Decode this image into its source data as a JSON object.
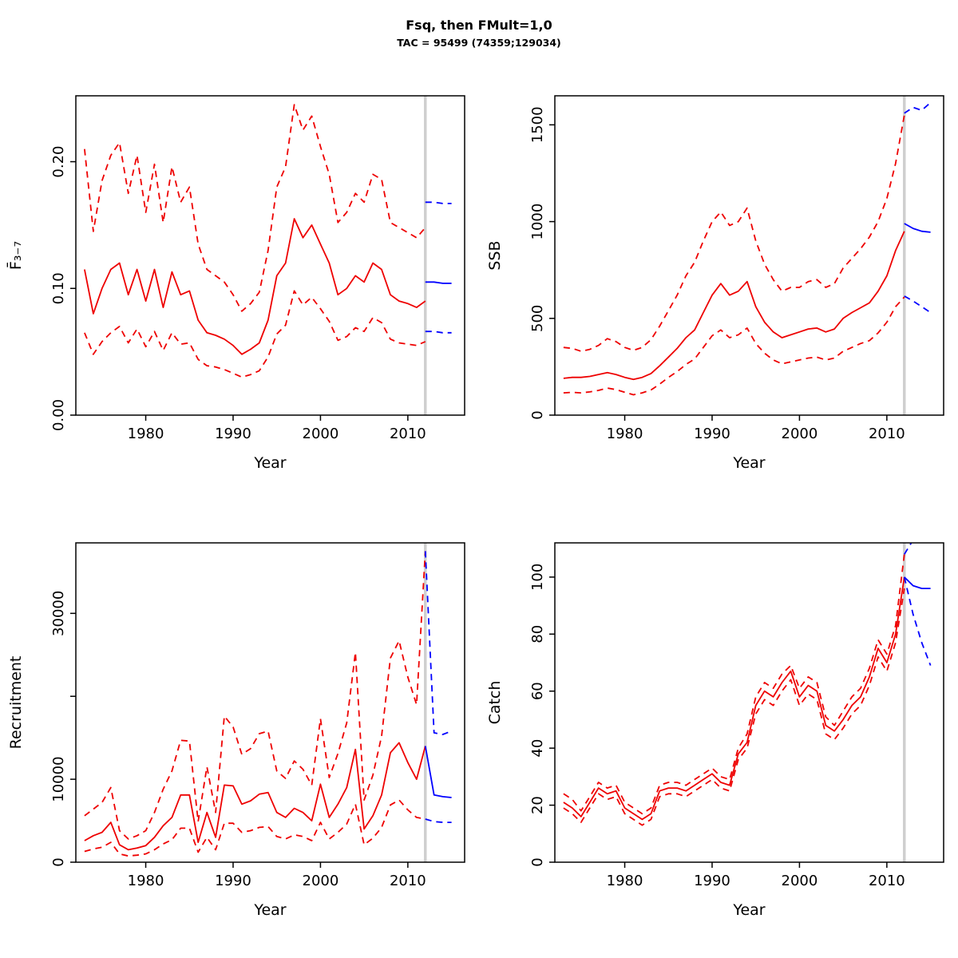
{
  "header": {
    "title": "Fsq, then FMult=1,0",
    "subtitle": "TAC = 95499 (74359;129034)"
  },
  "years": {
    "hist": [
      1973,
      1974,
      1975,
      1976,
      1977,
      1978,
      1979,
      1980,
      1981,
      1982,
      1983,
      1984,
      1985,
      1986,
      1987,
      1988,
      1989,
      1990,
      1991,
      1992,
      1993,
      1994,
      1995,
      1996,
      1997,
      1998,
      1999,
      2000,
      2001,
      2002,
      2003,
      2004,
      2005,
      2006,
      2007,
      2008,
      2009,
      2010,
      2011,
      2012
    ],
    "forecast": [
      2012,
      2013,
      2014,
      2015
    ]
  },
  "style": {
    "hist_color": "#EE0000",
    "forecast_color": "#0000FF",
    "vline_color": "#CFCFCF",
    "box_color": "#000000"
  },
  "chart_data": [
    {
      "type": "line",
      "name": "fbar",
      "ylabel": "F̄₃₋₇",
      "xlabel": "Year",
      "xlim": [
        1972,
        2016.5
      ],
      "ylim": [
        0,
        0.252
      ],
      "xticks": [
        1980,
        1990,
        2000,
        2010
      ],
      "yticks": [
        {
          "v": 0,
          "label": "0.00"
        },
        {
          "v": 0.1,
          "label": "0.10"
        },
        {
          "v": 0.2,
          "label": "0.20"
        }
      ],
      "vline_year": 2012,
      "series_hist": {
        "median": [
          0.115,
          0.08,
          0.1,
          0.115,
          0.12,
          0.095,
          0.115,
          0.09,
          0.115,
          0.085,
          0.113,
          0.095,
          0.098,
          0.075,
          0.065,
          0.063,
          0.06,
          0.055,
          0.048,
          0.052,
          0.057,
          0.075,
          0.11,
          0.12,
          0.155,
          0.14,
          0.15,
          0.135,
          0.12,
          0.095,
          0.1,
          0.11,
          0.105,
          0.12,
          0.115,
          0.095,
          0.09,
          0.088,
          0.085,
          0.09
        ],
        "upper": [
          0.21,
          0.145,
          0.185,
          0.205,
          0.215,
          0.175,
          0.205,
          0.16,
          0.198,
          0.152,
          0.196,
          0.168,
          0.18,
          0.135,
          0.115,
          0.11,
          0.105,
          0.095,
          0.082,
          0.088,
          0.097,
          0.13,
          0.18,
          0.196,
          0.245,
          0.225,
          0.236,
          0.212,
          0.19,
          0.152,
          0.16,
          0.175,
          0.168,
          0.19,
          0.186,
          0.152,
          0.148,
          0.144,
          0.14,
          0.148
        ],
        "lower": [
          0.065,
          0.048,
          0.058,
          0.065,
          0.07,
          0.057,
          0.068,
          0.054,
          0.066,
          0.051,
          0.065,
          0.056,
          0.057,
          0.044,
          0.039,
          0.038,
          0.036,
          0.033,
          0.03,
          0.032,
          0.035,
          0.046,
          0.064,
          0.071,
          0.098,
          0.087,
          0.093,
          0.084,
          0.074,
          0.059,
          0.062,
          0.069,
          0.066,
          0.077,
          0.073,
          0.06,
          0.057,
          0.056,
          0.055,
          0.058
        ]
      },
      "series_forecast": {
        "median": [
          0.105,
          0.105,
          0.104,
          0.104
        ],
        "upper": [
          0.168,
          0.168,
          0.167,
          0.167
        ],
        "lower": [
          0.066,
          0.066,
          0.065,
          0.065
        ]
      }
    },
    {
      "type": "line",
      "name": "ssb",
      "ylabel": "SSB",
      "xlabel": "Year",
      "xlim": [
        1972,
        2016.5
      ],
      "ylim": [
        0,
        1650
      ],
      "xticks": [
        1980,
        1990,
        2000,
        2010
      ],
      "yticks": [
        {
          "v": 0,
          "label": "0"
        },
        {
          "v": 500,
          "label": "500"
        },
        {
          "v": 1000,
          "label": "1000"
        },
        {
          "v": 1500,
          "label": "1500"
        }
      ],
      "vline_year": 2012,
      "series_hist": {
        "median": [
          190,
          195,
          195,
          200,
          210,
          220,
          210,
          195,
          185,
          195,
          215,
          255,
          300,
          345,
          400,
          440,
          530,
          620,
          680,
          620,
          640,
          690,
          560,
          480,
          430,
          400,
          415,
          430,
          445,
          450,
          430,
          445,
          500,
          530,
          555,
          580,
          640,
          720,
          850,
          950
        ],
        "upper": [
          350,
          345,
          330,
          340,
          360,
          395,
          380,
          350,
          335,
          350,
          390,
          460,
          540,
          620,
          720,
          790,
          900,
          1000,
          1050,
          980,
          1000,
          1070,
          900,
          780,
          700,
          640,
          660,
          660,
          690,
          700,
          660,
          680,
          760,
          810,
          860,
          920,
          1000,
          1120,
          1300,
          1550
        ],
        "lower": [
          115,
          118,
          115,
          120,
          128,
          140,
          132,
          118,
          105,
          115,
          130,
          160,
          195,
          225,
          262,
          290,
          350,
          410,
          440,
          400,
          415,
          450,
          370,
          320,
          285,
          265,
          275,
          285,
          295,
          300,
          285,
          295,
          330,
          350,
          370,
          385,
          425,
          480,
          560,
          610
        ]
      },
      "series_forecast": {
        "median": [
          990,
          965,
          950,
          945
        ],
        "upper": [
          1560,
          1590,
          1575,
          1615
        ],
        "lower": [
          615,
          590,
          560,
          530
        ]
      }
    },
    {
      "type": "line",
      "name": "recruitment",
      "ylabel": "Recruitment",
      "xlabel": "Year",
      "xlim": [
        1972,
        2016.5
      ],
      "ylim": [
        0,
        38500
      ],
      "xticks": [
        1980,
        1990,
        2000,
        2010
      ],
      "yticks": [
        {
          "v": 0,
          "label": "0"
        },
        {
          "v": 10000,
          "label": "10000"
        },
        {
          "v": 20000,
          "label": ""
        },
        {
          "v": 30000,
          "label": "30000"
        }
      ],
      "vline_year": 2012,
      "series_hist": {
        "median": [
          2600,
          3200,
          3600,
          4800,
          2100,
          1500,
          1700,
          2000,
          3000,
          4400,
          5400,
          8100,
          8100,
          2400,
          6000,
          3000,
          9300,
          9200,
          7000,
          7400,
          8200,
          8400,
          6000,
          5400,
          6500,
          6000,
          5000,
          9400,
          5400,
          7000,
          9000,
          13600,
          4000,
          5600,
          8100,
          13200,
          14400,
          12000,
          10000,
          14000
        ],
        "upper": [
          5600,
          6400,
          7200,
          9000,
          3800,
          2800,
          3200,
          3800,
          6000,
          8800,
          11000,
          14700,
          14600,
          4900,
          11500,
          6000,
          17600,
          16300,
          13000,
          13700,
          15500,
          15800,
          11000,
          10100,
          12200,
          11200,
          9300,
          17300,
          10200,
          13100,
          16800,
          25300,
          7500,
          10500,
          15200,
          24600,
          26700,
          22300,
          19000,
          37500
        ],
        "lower": [
          1300,
          1600,
          1800,
          2400,
          1000,
          750,
          850,
          1000,
          1500,
          2200,
          2700,
          4100,
          4100,
          1200,
          3000,
          1500,
          4700,
          4700,
          3600,
          3800,
          4200,
          4300,
          3100,
          2800,
          3300,
          3100,
          2600,
          4800,
          2800,
          3600,
          4600,
          7000,
          2100,
          2900,
          4200,
          6900,
          7500,
          6300,
          5400,
          5200
        ]
      },
      "series_forecast": {
        "median": [
          14000,
          8100,
          7900,
          7800
        ],
        "upper": [
          37500,
          15600,
          15400,
          15800
        ],
        "lower": [
          5200,
          4900,
          4800,
          4800
        ]
      }
    },
    {
      "type": "line",
      "name": "catch",
      "ylabel": "Catch",
      "xlabel": "Year",
      "xlim": [
        1972,
        2016.5
      ],
      "ylim": [
        0,
        112
      ],
      "xticks": [
        1980,
        1990,
        2000,
        2010
      ],
      "yticks": [
        {
          "v": 0,
          "label": "0"
        },
        {
          "v": 20,
          "label": "20"
        },
        {
          "v": 40,
          "label": "40"
        },
        {
          "v": 60,
          "label": "60"
        },
        {
          "v": 80,
          "label": "80"
        },
        {
          "v": 100,
          "label": "100"
        }
      ],
      "vline_year": 2012,
      "series_hist": {
        "median": [
          21,
          19,
          16,
          21,
          26,
          24,
          25,
          19,
          17,
          15,
          17,
          25,
          26,
          26,
          25,
          27,
          29,
          31,
          28,
          27,
          38,
          42,
          55,
          60,
          58,
          63,
          67,
          58,
          62,
          60,
          48,
          46,
          50,
          55,
          58,
          65,
          75,
          70,
          80,
          100
        ],
        "upper": [
          24,
          22,
          18,
          23,
          28,
          26,
          27,
          21,
          19,
          17,
          19,
          27,
          28,
          28,
          27,
          29,
          31,
          33,
          30,
          29,
          40,
          45,
          58,
          63,
          61,
          66,
          69,
          61,
          65,
          63,
          51,
          48,
          53,
          58,
          61,
          68,
          78,
          73,
          83,
          108
        ],
        "lower": [
          19,
          17,
          14,
          19,
          24,
          22,
          23,
          17,
          15,
          13,
          15,
          23,
          24,
          24,
          23,
          25,
          27,
          29,
          26,
          25,
          36,
          40,
          52,
          57,
          55,
          60,
          64,
          55,
          59,
          57,
          45,
          43,
          47,
          52,
          55,
          62,
          72,
          67,
          77,
          96
        ]
      },
      "series_forecast": {
        "median": [
          100,
          97,
          96,
          96
        ],
        "upper": [
          108,
          113,
          116,
          118
        ],
        "lower": [
          100,
          87,
          77,
          69
        ]
      }
    }
  ]
}
